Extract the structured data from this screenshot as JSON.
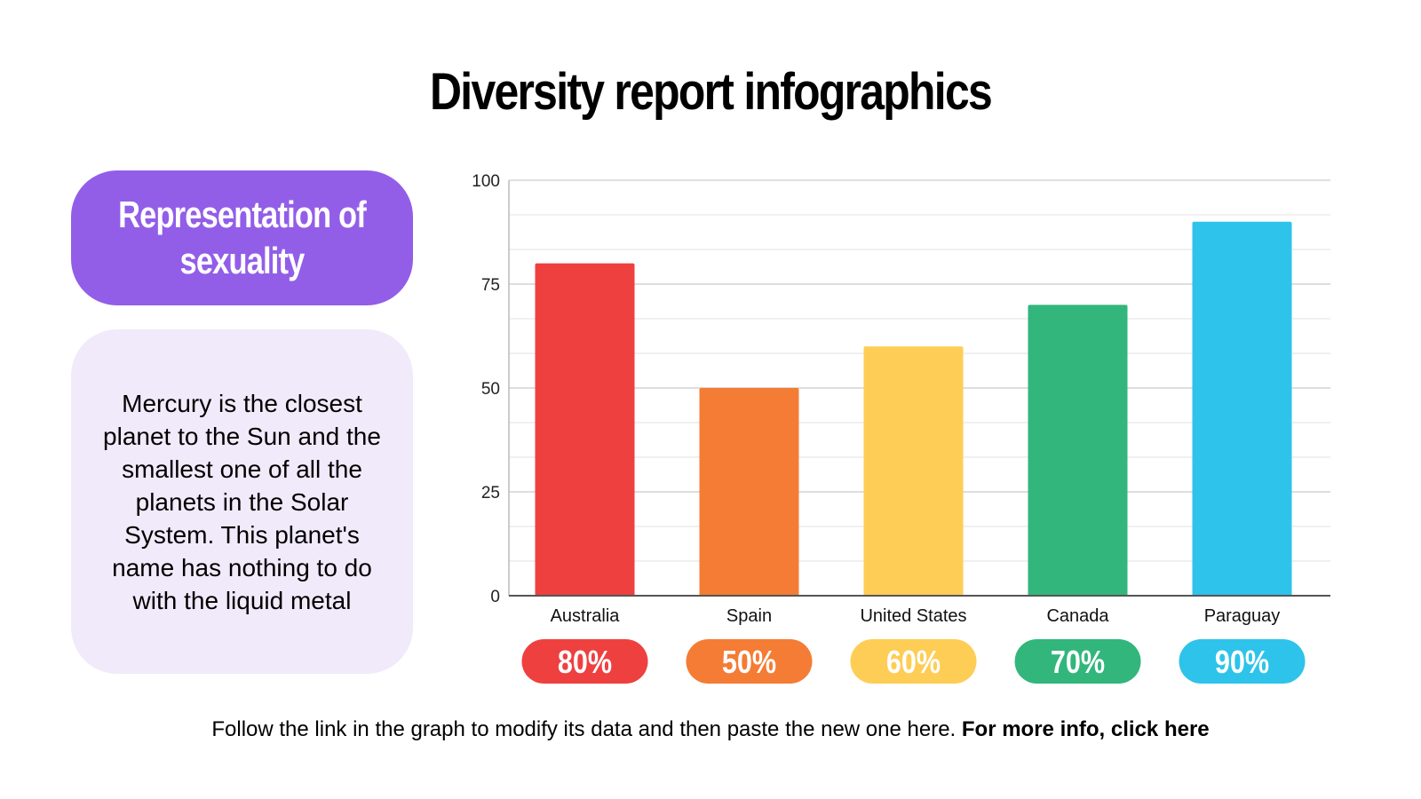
{
  "title": "Diversity report infographics",
  "tag": "Representation of sexuality",
  "description": "Mercury is the closest planet to the Sun and the smallest one of all the planets in the Solar System. This planet's name has nothing to do with the liquid metal",
  "footer": {
    "text": "Follow the link in the graph to modify its data and then paste the new one here. ",
    "link": "For more info, click here"
  },
  "colors": {
    "accent": "#925ee8",
    "panel": "#f0eafa"
  },
  "chart_data": {
    "type": "bar",
    "title": "",
    "xlabel": "",
    "ylabel": "",
    "ylim": [
      0,
      100
    ],
    "yticks": [
      0,
      25,
      50,
      75,
      100
    ],
    "grid": true,
    "categories": [
      "Australia",
      "Spain",
      "United States",
      "Canada",
      "Paraguay"
    ],
    "values": [
      80,
      50,
      60,
      70,
      90
    ],
    "value_labels": [
      "80%",
      "50%",
      "60%",
      "70%",
      "90%"
    ],
    "bar_colors": [
      "#ef4040",
      "#f47c35",
      "#fecd55",
      "#32b67c",
      "#2ec3ea"
    ]
  }
}
